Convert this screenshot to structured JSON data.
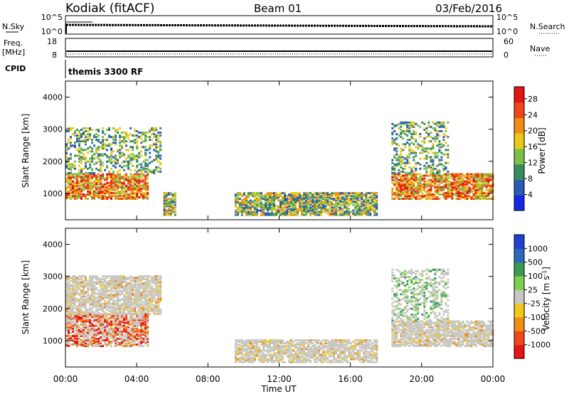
{
  "header": {
    "station": "Kodiak (fitACF)",
    "beam": "Beam 01",
    "date": "03/Feb/2016"
  },
  "top_panels": {
    "nsky_label": "N.Sky",
    "nsearch_label": "N.Search",
    "nsky_ticks": [
      "10^5",
      "10^0"
    ],
    "nsearch_ticks": [
      "10^5",
      "10^0"
    ],
    "freq_label": "Freq.",
    "freq_unit": "[MHz]",
    "freq_ticks": [
      "18",
      "8"
    ],
    "nave_label": "Nave",
    "nave_ticks": [
      "60",
      "0"
    ],
    "cpid_label": "CPID",
    "cpid_value": "themis 3300 RF"
  },
  "chart_data": [
    {
      "type": "heatmap",
      "name": "power",
      "ylabel": "Slant Range [km]",
      "xlabel": "",
      "xlim": [
        0,
        24
      ],
      "ylim": [
        180,
        4500
      ],
      "x_ticks": [
        "00:00",
        "04:00",
        "08:00",
        "12:00",
        "16:00",
        "20:00",
        "00:00"
      ],
      "y_ticks": [
        1000,
        2000,
        3000,
        4000
      ],
      "colorbar": {
        "label": "Power [dB]",
        "ticks": [
          4,
          8,
          12,
          16,
          20,
          24,
          28
        ],
        "range": [
          0,
          31
        ],
        "colors": [
          "#1428e6",
          "#2a5bb4",
          "#3a8a60",
          "#7cc04a",
          "#e8c818",
          "#f08c14",
          "#f04618",
          "#e61414"
        ]
      },
      "regions": [
        {
          "t": [
            0.0,
            4.6
          ],
          "r": [
            800,
            1600
          ],
          "level": "high"
        },
        {
          "t": [
            0.0,
            5.4
          ],
          "r": [
            1600,
            3000
          ],
          "level": "low"
        },
        {
          "t": [
            5.5,
            6.2
          ],
          "r": [
            300,
            1000
          ],
          "level": "mid"
        },
        {
          "t": [
            9.5,
            17.5
          ],
          "r": [
            300,
            1000
          ],
          "level": "mid"
        },
        {
          "t": [
            18.3,
            24.0
          ],
          "r": [
            800,
            1600
          ],
          "level": "high"
        },
        {
          "t": [
            18.3,
            21.5
          ],
          "r": [
            1600,
            3200
          ],
          "level": "low"
        }
      ]
    },
    {
      "type": "heatmap",
      "name": "velocity",
      "ylabel": "Slant Range [km]",
      "xlabel": "Time UT",
      "xlim": [
        0,
        24
      ],
      "ylim": [
        180,
        4500
      ],
      "x_ticks": [
        "00:00",
        "04:00",
        "08:00",
        "12:00",
        "16:00",
        "20:00",
        "00:00"
      ],
      "y_ticks": [
        1000,
        2000,
        3000,
        4000
      ],
      "colorbar": {
        "label": "Velocity [m s^-1]",
        "ticks": [
          "1000",
          "500",
          "100",
          "25",
          "-25",
          "-100",
          "-500",
          "-1000"
        ],
        "colors": [
          "#2040d0",
          "#2a6ab8",
          "#3a9a50",
          "#7cd04a",
          "#c8c8c0",
          "#f0c818",
          "#f08c14",
          "#f04618",
          "#e61414"
        ]
      },
      "regions": [
        {
          "t": [
            0.0,
            4.6
          ],
          "r": [
            800,
            1800
          ],
          "level": "neg"
        },
        {
          "t": [
            0.0,
            5.4
          ],
          "r": [
            1800,
            3000
          ],
          "level": "ground"
        },
        {
          "t": [
            9.5,
            17.5
          ],
          "r": [
            300,
            1000
          ],
          "level": "ground"
        },
        {
          "t": [
            18.3,
            24.0
          ],
          "r": [
            800,
            1600
          ],
          "level": "ground"
        },
        {
          "t": [
            18.3,
            21.5
          ],
          "r": [
            1600,
            3200
          ],
          "level": "pos"
        }
      ]
    }
  ]
}
